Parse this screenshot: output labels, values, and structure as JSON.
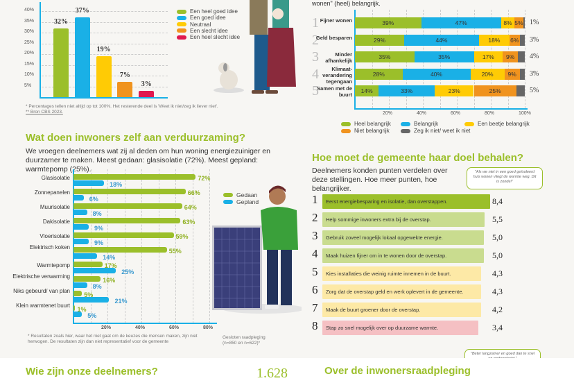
{
  "colors": {
    "green": "#9bbf2a",
    "blue": "#1ab0e6",
    "yellow": "#ffcb05",
    "orange": "#f0931e",
    "red": "#e0194f",
    "grey": "#666666",
    "accent": "#9bbf2a"
  },
  "chart_data": [
    {
      "type": "bar",
      "yticks": [
        "5%",
        "10%",
        "15%",
        "20%",
        "25%",
        "30%",
        "35%",
        "40%"
      ],
      "ylim": [
        0,
        40
      ],
      "grid": true,
      "categories": [
        "Een heel goed idee",
        "Een goed idee",
        "Neutraal",
        "Een slecht idee",
        "Een heel slecht idee"
      ],
      "values": [
        32,
        37,
        19,
        7,
        3
      ],
      "labels": [
        "32%",
        "37%",
        "19%",
        "7%",
        "3%"
      ],
      "legend": "right"
    },
    {
      "type": "bar",
      "stacked": true,
      "orientation": "horizontal",
      "xticks": [
        "20%",
        "40%",
        "60%",
        "80%",
        "100%"
      ],
      "series_names": [
        "Heel belangrijk",
        "Belangrijk",
        "Een beetje belangrijk",
        "Niet belangrijk",
        "Zeg ik niet/ weet ik niet"
      ],
      "rows": [
        {
          "rank": "1",
          "label": "Fijner wonen",
          "values": [
            39,
            47,
            8,
            5,
            1
          ]
        },
        {
          "rank": "2",
          "label": "Geld besparen",
          "values": [
            29,
            44,
            18,
            6,
            3
          ]
        },
        {
          "rank": "3",
          "label": "Minder afhankelijk",
          "values": [
            35,
            35,
            17,
            9,
            4
          ]
        },
        {
          "rank": "4",
          "label": "Klimaat-verandering tegengaan",
          "values": [
            28,
            40,
            20,
            9,
            3
          ]
        },
        {
          "rank": "5",
          "label": "Samen met de buurt",
          "values": [
            14,
            33,
            23,
            25,
            5
          ]
        }
      ],
      "legend": "bottom"
    },
    {
      "type": "bar",
      "orientation": "horizontal",
      "xticks": [
        "20%",
        "40%",
        "60%",
        "80%"
      ],
      "xlim": [
        0,
        80
      ],
      "series": [
        {
          "name": "Gedaan",
          "values": [
            72,
            66,
            64,
            63,
            59,
            55,
            17,
            16,
            5,
            1
          ]
        },
        {
          "name": "Gepland",
          "values": [
            18,
            6,
            8,
            9,
            9,
            14,
            25,
            8,
            21,
            5
          ]
        }
      ],
      "categories": [
        "Glasisolatie",
        "Zonnepanelen",
        "Muurisolatie",
        "Dakisolatie",
        "Vloerisolatie",
        "Elektrisch koken",
        "Warmtepomp",
        "Elektrische verwarming",
        "Niks gebeurd/ van plan",
        "Klein warmtenet buurt"
      ],
      "legend": "right"
    }
  ],
  "top": {
    "footnote1": "*   Percentages tellen niet altijd op tot 100%. Het resterende deel is 'Weet ik niet/zeg ik liever niet'.",
    "footnote2": "**  Bron CBS 2023.",
    "intro_cut": "wonen\" (heel) belangrijk."
  },
  "sec2": {
    "title": "Wat doen inwoners zelf aan verduurzaming?",
    "text": "We vroegen deelnemers wat zij al deden om hun woning energiezuiniger en duurzamer te maken. Meest gedaan: glasisolatie (72%). Meest gepland: warmtepomp (25%).",
    "footnote": "* Resultaten zoals hier, waar het niet gaat om de keuzes die mensen maken, zijn niet herwogen. De resultaten zijn dan niet representatief voor de gemeente",
    "sample": "Gesloten raadpleging (n=850 en n=622)*"
  },
  "sec3": {
    "title": "Hoe moet de gemeente haar doel behalen?",
    "text": "Deelnemers konden punten verdelen over deze stellingen. Hoe meer punten, hoe belangrijker.",
    "quote1": "\"Als we niet in een goed geïsoleerd huis wonen vliegt de warmte weg. Dit is zonde!\"",
    "quote2": "\"Beter langzamer en goed dan te snel en ondoordacht.\"",
    "items": [
      {
        "n": "1",
        "text": "Eerst energiebesparing en isolatie, dan overstappen.",
        "score": "8,4",
        "color": "#9bbf2a"
      },
      {
        "n": "2",
        "text": "Help sommige inwoners extra bij de overstap.",
        "score": "5,5",
        "color": "#c9dc8f"
      },
      {
        "n": "3",
        "text": "Gebruik zoveel mogelijk lokaal opgewekte energie.",
        "score": "5,0",
        "color": "#c9dc8f"
      },
      {
        "n": "4",
        "text": "Maak huizen fijner om in te wonen door de overstap.",
        "score": "5,0",
        "color": "#c9dc8f"
      },
      {
        "n": "5",
        "text": "Kies installaties die weinig ruimte innemen in de buurt.",
        "score": "4,3",
        "color": "#fde9a6"
      },
      {
        "n": "6",
        "text": "Zorg dat de overstap geld en werk oplevert in de gemeente.",
        "score": "4,3",
        "color": "#fde9a6"
      },
      {
        "n": "7",
        "text": "Maak de buurt groener door de overstap.",
        "score": "4,2",
        "color": "#fde9a6"
      },
      {
        "n": "8",
        "text": "Stap zo snel mogelijk over op duurzame warmte.",
        "score": "3,4",
        "color": "#f5c0c3"
      }
    ]
  },
  "bottom": {
    "title_left": "Wie zijn onze deelnemers?",
    "count": "1.628",
    "title_right": "Over de inwonersraadpleging"
  }
}
